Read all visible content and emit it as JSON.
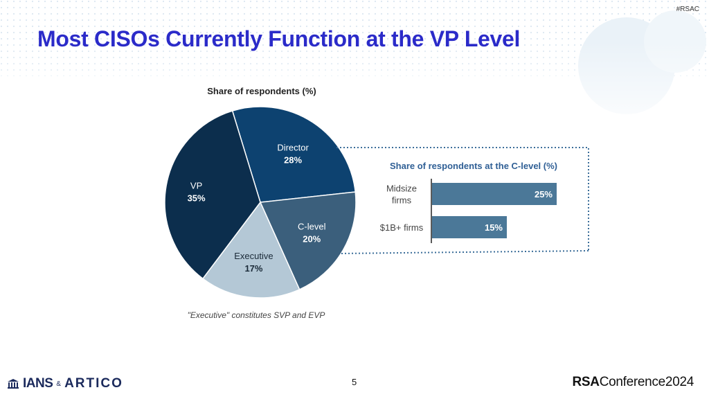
{
  "header": {
    "hashtag": "#RSAC",
    "title": "Most CISOs Currently Function at the VP Level"
  },
  "chart_data": [
    {
      "type": "pie",
      "title": "Share of respondents (%)",
      "categories": [
        "Director",
        "C-level",
        "Executive",
        "VP"
      ],
      "values": [
        28,
        20,
        17,
        35
      ],
      "value_labels": [
        "28%",
        "20%",
        "17%",
        "35%"
      ],
      "colors": [
        "#0d4270",
        "#3b5f7c",
        "#b4c8d6",
        "#0c2e4d"
      ],
      "label_colors": [
        "#ffffff",
        "#ffffff",
        "#1a2a38",
        "#ffffff"
      ],
      "footnote": "\"Executive\" constitutes SVP and EVP"
    },
    {
      "type": "bar",
      "orientation": "horizontal",
      "title": "Share of respondents at the C-level (%)",
      "categories": [
        "Midsize firms",
        "$1B+ firms"
      ],
      "category_lines": [
        [
          "Midsize",
          "firms"
        ],
        [
          "$1B+ firms"
        ]
      ],
      "values": [
        25,
        15
      ],
      "value_labels": [
        "25%",
        "15%"
      ],
      "xlim": [
        0,
        25
      ],
      "bar_color": "#4b7898"
    }
  ],
  "footer": {
    "page_number": "5",
    "logo_ians": "IANS",
    "logo_amp": "&",
    "logo_artico": "ARTICO",
    "rsac_bold": "RSA",
    "rsac_light": "Conference",
    "rsac_year": "2024"
  },
  "colors": {
    "title": "#2b2bc9",
    "callout_border": "#3a6d99",
    "bar_title": "#2f5f95"
  }
}
